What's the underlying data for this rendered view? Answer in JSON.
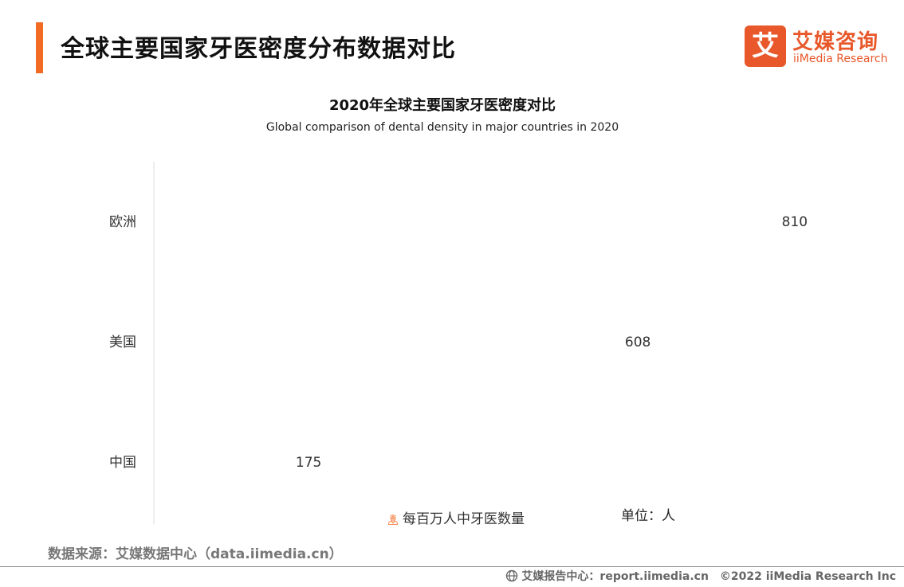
{
  "header": {
    "title": "全球主要国家牙医密度分布数据对比",
    "logo_mark": "艾",
    "logo_cn": "艾媒咨询",
    "logo_en": "iiMedia Research"
  },
  "chart_data": {
    "type": "pictogram-bar",
    "title": "2020年全球主要国家牙医密度对比",
    "subtitle": "Global comparison of dental density in major countries in 2020",
    "categories": [
      "欧洲",
      "美国",
      "中国"
    ],
    "values": [
      810,
      608,
      175
    ],
    "value_labels": [
      "810",
      "608",
      "175"
    ],
    "series": [
      {
        "name": "每百万人中牙医数量",
        "values": [
          810,
          608,
          175
        ]
      }
    ],
    "icon": "doctor-icon",
    "unit_per_icon": 55.6,
    "unit": "单位：人",
    "color": "#f26b25"
  },
  "footer": {
    "source": "数据来源：艾媒数据中心（data.iimedia.cn）",
    "report": "艾媒报告中心：report.iimedia.cn",
    "copyright": "©2022  iiMedia Research  Inc"
  }
}
